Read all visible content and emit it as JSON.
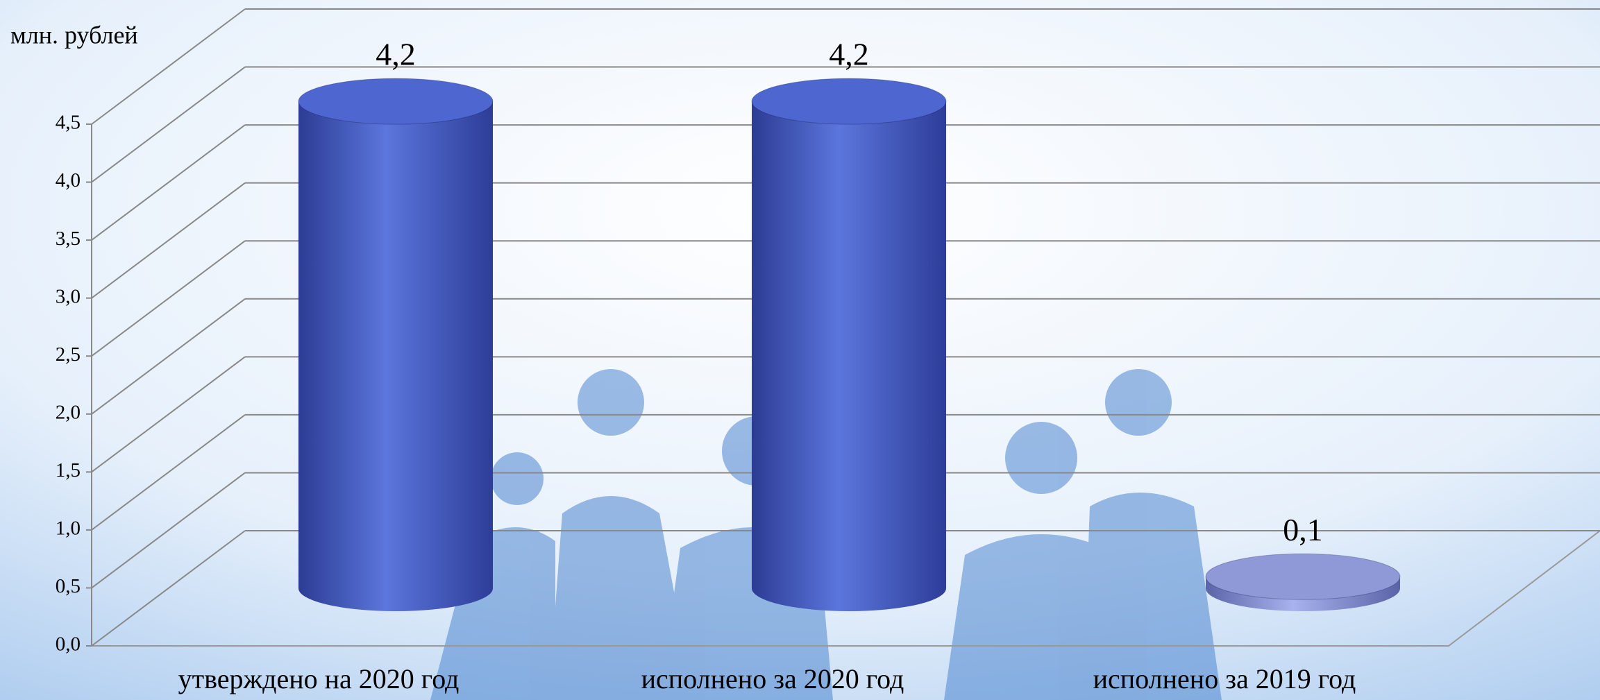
{
  "chart_data": {
    "type": "bar3d",
    "unit_label": "млн. рублей",
    "categories": [
      "утверждено на 2020 год",
      "исполнено за 2020 год",
      "исполнено за 2019 год"
    ],
    "values": [
      4.2,
      4.2,
      0.1
    ],
    "value_labels": [
      "4,2",
      "4,2",
      "0,1"
    ],
    "colors": [
      "#4d66d0",
      "#4d66d0",
      "#8f99d8"
    ],
    "ylim": [
      0,
      4.5
    ],
    "yticks": [
      {
        "value": 0,
        "label": "0,0"
      },
      {
        "value": 0.5,
        "label": "0,5"
      },
      {
        "value": 1,
        "label": "1,0"
      },
      {
        "value": 1.5,
        "label": "1,5"
      },
      {
        "value": 2,
        "label": "2,0"
      },
      {
        "value": 2.5,
        "label": "2,5"
      },
      {
        "value": 3,
        "label": "3,0"
      },
      {
        "value": 3.5,
        "label": "3,5"
      },
      {
        "value": 4,
        "label": "4,0"
      },
      {
        "value": 4.5,
        "label": "4,5"
      }
    ],
    "grid": true
  }
}
